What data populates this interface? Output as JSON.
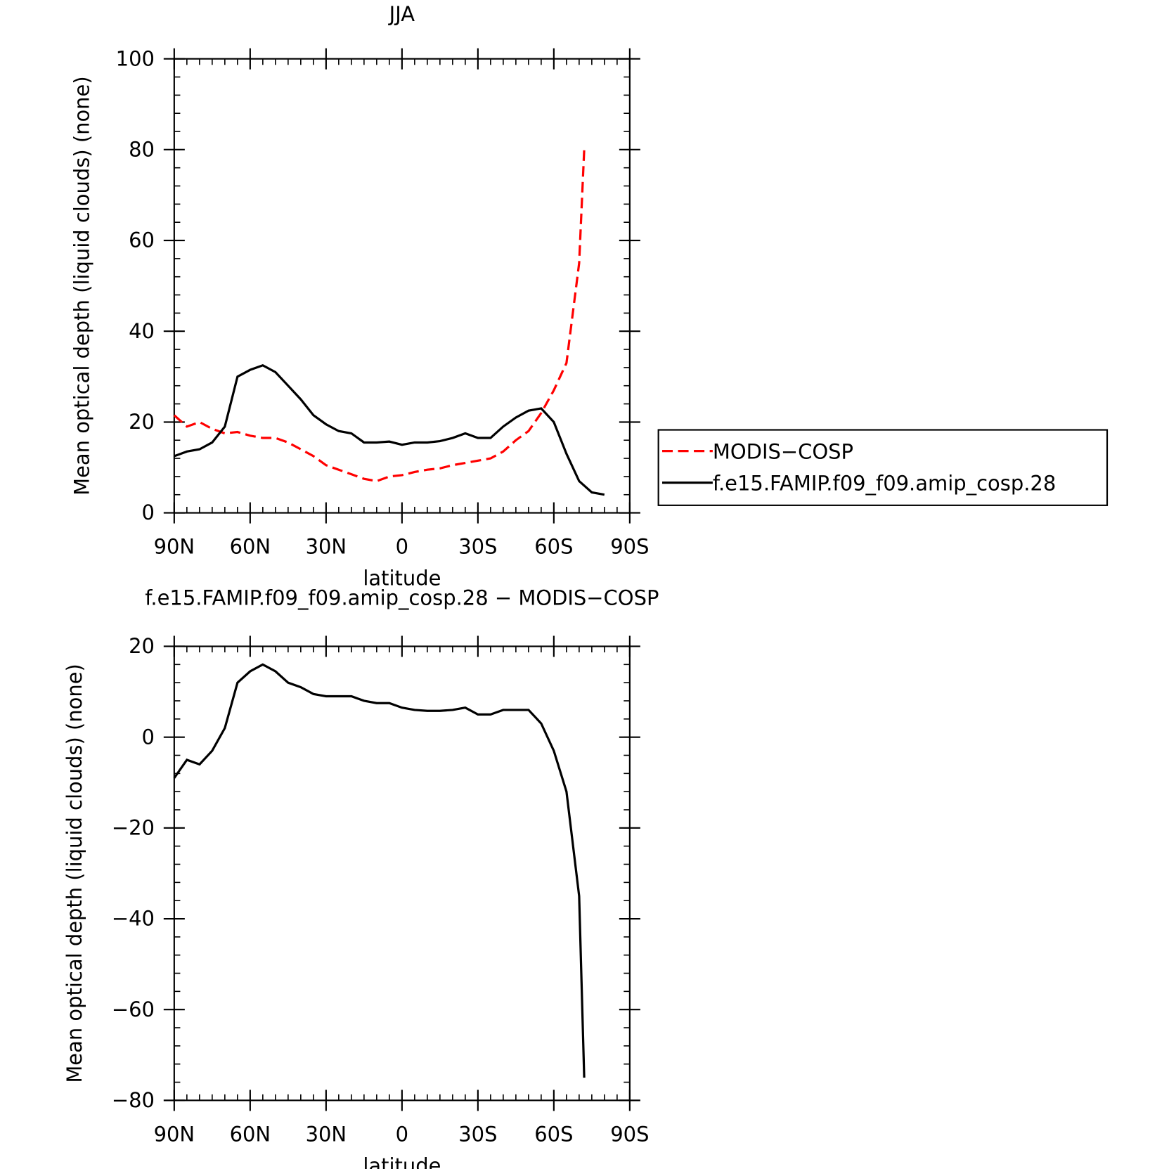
{
  "chart_data": [
    {
      "type": "line",
      "title": "JJA",
      "xlabel": "latitude",
      "ylabel": "Mean optical depth (liquid clouds) (none)",
      "x": [
        90,
        85,
        80,
        75,
        70,
        65,
        60,
        55,
        50,
        45,
        40,
        35,
        30,
        25,
        20,
        15,
        10,
        5,
        0,
        -5,
        -10,
        -15,
        -20,
        -25,
        -30,
        -35,
        -40,
        -45,
        -50,
        -55,
        -60,
        -65,
        -70,
        -72,
        -75,
        -80
      ],
      "xlim": [
        90,
        -90
      ],
      "xticks": [
        {
          "value": 90,
          "label": "90N"
        },
        {
          "value": 60,
          "label": "60N"
        },
        {
          "value": 30,
          "label": "30N"
        },
        0,
        {
          "value": -30,
          "label": "30S"
        },
        {
          "value": -60,
          "label": "60S"
        },
        {
          "value": -90,
          "label": "90S"
        }
      ],
      "ylim": [
        0,
        100
      ],
      "yticks": [
        0,
        20,
        40,
        60,
        80,
        100
      ],
      "legend": "right",
      "series": [
        {
          "name": "MODIS−COSP",
          "color": "#ff0000",
          "dash": true,
          "values": [
            21.5,
            19,
            20,
            18.5,
            17.5,
            17.8,
            17,
            16.5,
            16.5,
            15.5,
            14,
            12.5,
            10.5,
            9.5,
            8.5,
            7.5,
            7,
            8,
            8.3,
            9,
            9.5,
            9.8,
            10.5,
            11,
            11.5,
            12,
            13.5,
            16,
            18,
            22,
            27,
            33,
            55,
            80,
            null,
            null
          ]
        },
        {
          "name": "f.e15.FAMIP.f09_f09.amip_cosp.28",
          "color": "#000000",
          "dash": false,
          "values": [
            12.5,
            13.5,
            14,
            15.5,
            19,
            30,
            31.5,
            32.5,
            31,
            28,
            25,
            21.5,
            19.5,
            18,
            17.5,
            15.5,
            15.5,
            15.7,
            15,
            15.5,
            15.5,
            15.8,
            16.5,
            17.5,
            16.5,
            16.5,
            19,
            21,
            22.5,
            23,
            20,
            13,
            7,
            6,
            4.5,
            4
          ]
        }
      ]
    },
    {
      "type": "line",
      "title": "f.e15.FAMIP.f09_f09.amip_cosp.28 − MODIS−COSP",
      "xlabel": "latitude",
      "ylabel": "Mean optical depth (liquid clouds) (none)",
      "x": [
        90,
        85,
        80,
        75,
        70,
        65,
        60,
        55,
        50,
        45,
        40,
        35,
        30,
        25,
        20,
        15,
        10,
        5,
        0,
        -5,
        -10,
        -15,
        -20,
        -25,
        -30,
        -35,
        -40,
        -45,
        -50,
        -55,
        -60,
        -65,
        -70,
        -72,
        -75,
        -80
      ],
      "xlim": [
        90,
        -90
      ],
      "xticks": [
        {
          "value": 90,
          "label": "90N"
        },
        {
          "value": 60,
          "label": "60N"
        },
        {
          "value": 30,
          "label": "30N"
        },
        0,
        {
          "value": -30,
          "label": "30S"
        },
        {
          "value": -60,
          "label": "60S"
        },
        {
          "value": -90,
          "label": "90S"
        }
      ],
      "ylim": [
        -80,
        20
      ],
      "yticks": [
        {
          "value": -80,
          "label": "−80"
        },
        {
          "value": -60,
          "label": "−60"
        },
        {
          "value": -40,
          "label": "−40"
        },
        {
          "value": -20,
          "label": "−20"
        },
        0,
        20
      ],
      "series": [
        {
          "color": "#000000",
          "dash": false,
          "values": [
            -9,
            -5,
            -6,
            -3,
            2,
            12,
            14.5,
            16,
            14.5,
            12,
            11,
            9.5,
            9,
            9,
            9,
            8,
            7.5,
            7.5,
            6.5,
            6,
            5.8,
            5.8,
            6,
            6.5,
            5,
            5,
            6,
            6,
            6,
            3,
            -3,
            -12,
            -35,
            -75,
            null,
            null
          ]
        }
      ]
    }
  ]
}
